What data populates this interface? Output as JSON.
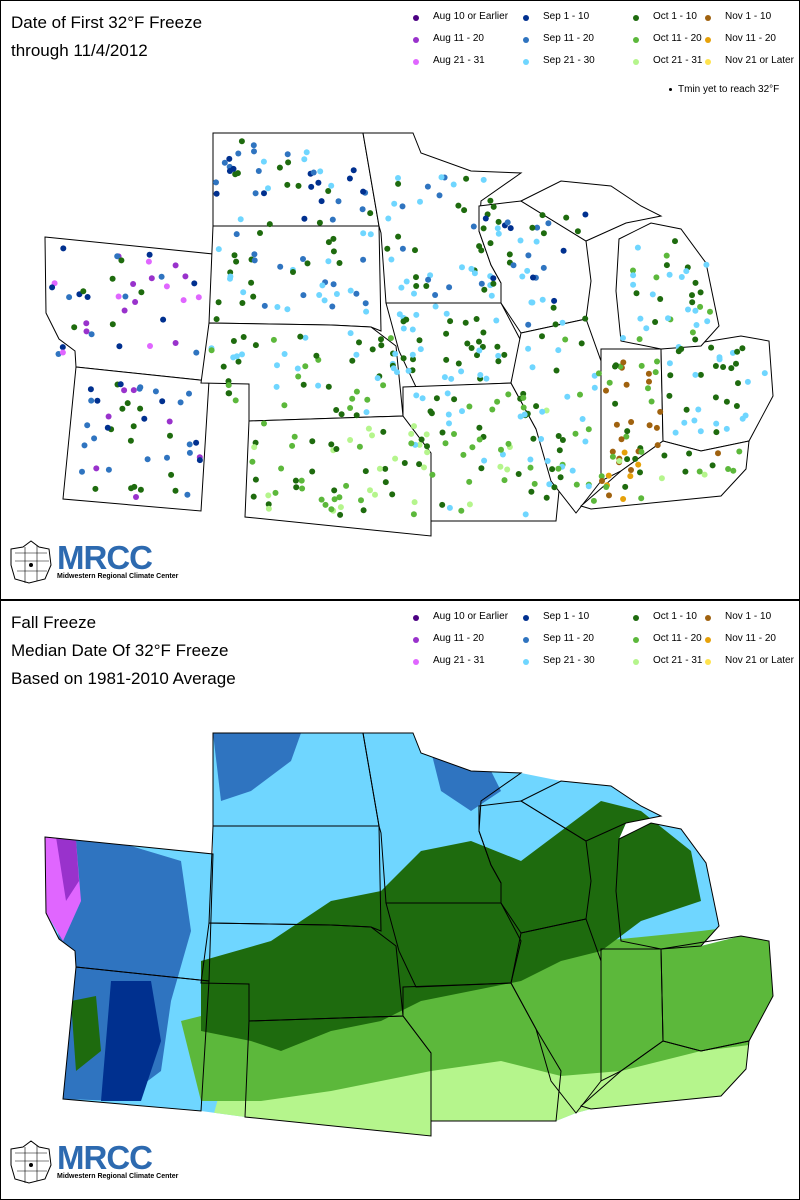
{
  "top_panel": {
    "title_lines": [
      "Date of First 32°F Freeze",
      "through 11/4/2012"
    ],
    "tmin_note": "Tmin yet to reach 32°F"
  },
  "bottom_panel": {
    "title_lines": [
      "Fall Freeze",
      "Median Date Of 32°F Freeze",
      "Based on 1981-2010 Average"
    ]
  },
  "legend": [
    {
      "label": "Aug 10 or Earlier",
      "color": "#4b0082"
    },
    {
      "label": "Aug 11 - 20",
      "color": "#9932cc"
    },
    {
      "label": "Aug 21 - 31",
      "color": "#e066ff"
    },
    {
      "label": "Sep 1 - 10",
      "color": "#00308f"
    },
    {
      "label": "Sep 11 - 20",
      "color": "#2f74c0"
    },
    {
      "label": "Sep 21 - 30",
      "color": "#6fd6ff"
    },
    {
      "label": "Oct 1 - 10",
      "color": "#1e6b0e"
    },
    {
      "label": "Oct 11 - 20",
      "color": "#5cb83b"
    },
    {
      "label": "Oct 21 - 31",
      "color": "#b5f58c"
    },
    {
      "label": "Nov 1 - 10",
      "color": "#a0620f"
    },
    {
      "label": "Nov 11 - 20",
      "color": "#e6a10a"
    },
    {
      "label": "Nov 21 or Later",
      "color": "#ffe34d"
    }
  ],
  "logo": {
    "name": "MRCC",
    "subtitle": "Midwestern Regional Climate Center"
  }
}
